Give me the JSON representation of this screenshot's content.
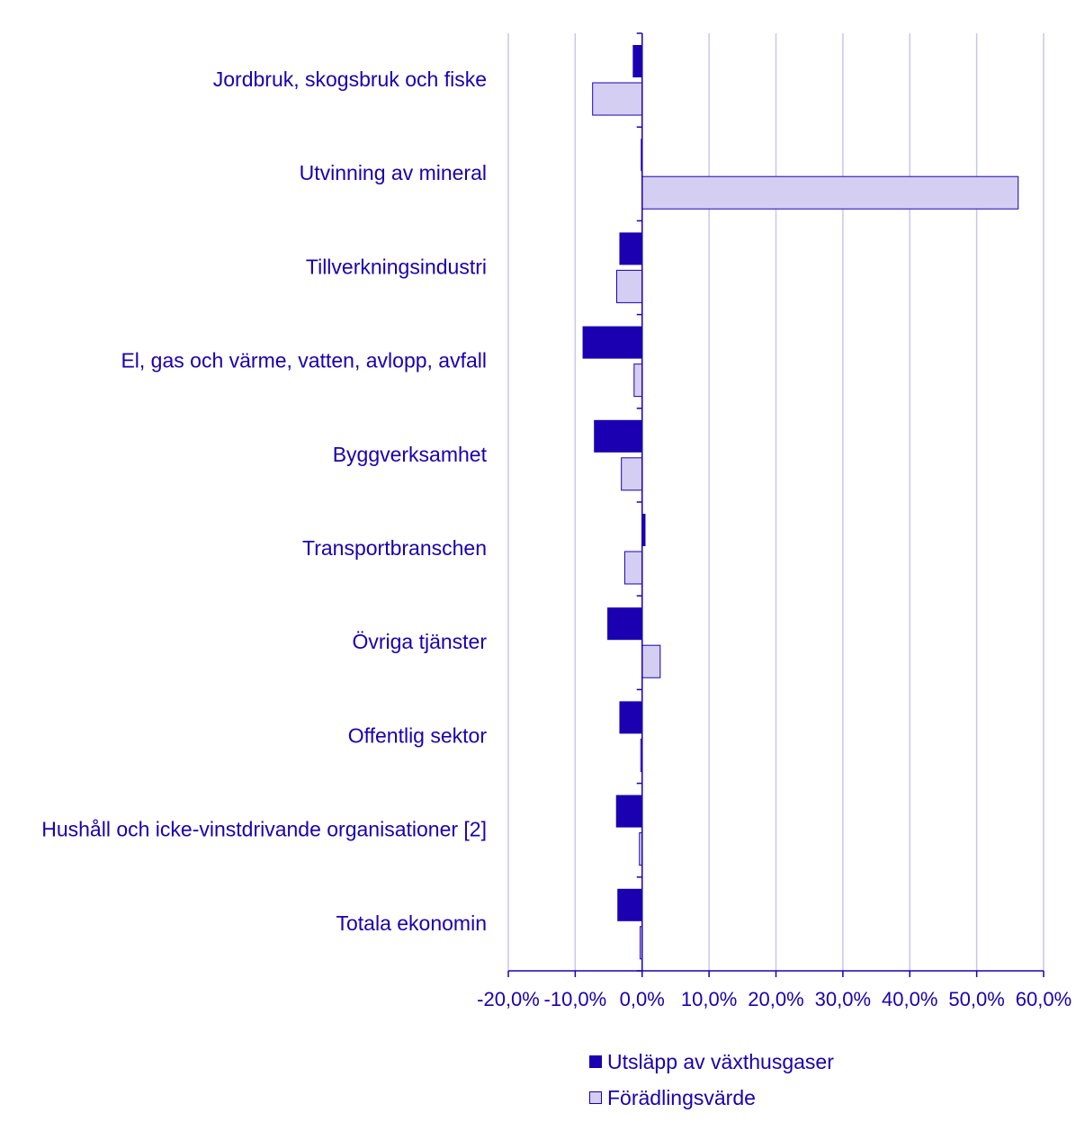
{
  "chart_data": {
    "type": "bar",
    "orientation": "horizontal",
    "categories": [
      "Jordbruk, skogsbruk och fiske",
      "Utvinning av mineral",
      "Tillverkningsindustri",
      "El, gas och värme, vatten, avlopp, avfall",
      "Byggverksamhet",
      "Transportbranschen",
      "Övriga tjänster",
      "Offentlig sektor",
      "Hushåll och icke-vinstdrivande organisationer [2]",
      "Totala ekonomin"
    ],
    "series": [
      {
        "name": "Utsläpp av växthusgaser",
        "color": "#1a00b0",
        "values": [
          -1.4,
          -0.2,
          -3.4,
          -8.9,
          -7.2,
          0.5,
          -5.2,
          -3.4,
          -3.9,
          -3.7
        ]
      },
      {
        "name": "Förädlingsvärde",
        "color": "#d4cff2",
        "values": [
          -7.4,
          56.2,
          -3.8,
          -1.2,
          -3.1,
          -2.6,
          2.7,
          -0.2,
          -0.4,
          -0.3
        ]
      }
    ],
    "xlim": [
      -20,
      60
    ],
    "xticks": [
      "-20,0%",
      "-10,0%",
      "0,0%",
      "10,0%",
      "20,0%",
      "30,0%",
      "40,0%",
      "50,0%",
      "60,0%"
    ],
    "xtick_values": [
      -20,
      -10,
      0,
      10,
      20,
      30,
      40,
      50,
      60
    ],
    "grid": true,
    "legend_position": "bottom",
    "title": "",
    "xlabel": "",
    "ylabel": ""
  }
}
